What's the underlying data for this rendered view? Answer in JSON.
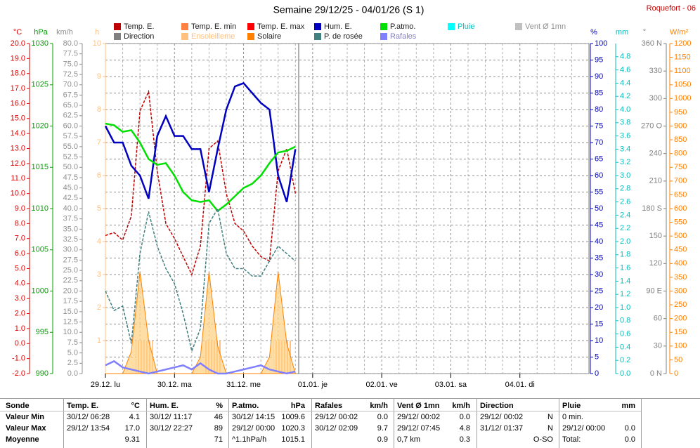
{
  "chart_data": {
    "type": "line",
    "title": "Semaine 29/12/25 - 04/01/26 (S 1)",
    "station": "Roquefort - 06",
    "xlim": [
      0,
      168
    ],
    "xticks": [
      {
        "value": 0,
        "label": "29.12. lu"
      },
      {
        "value": 24,
        "label": "30.12. ma"
      },
      {
        "value": 48,
        "label": "31.12. me"
      },
      {
        "value": 72,
        "label": "01.01. je"
      },
      {
        "value": 96,
        "label": "02.01. ve"
      },
      {
        "value": 120,
        "label": "03.01. sa"
      },
      {
        "value": 144,
        "label": "04.01. di"
      }
    ],
    "xminorticks": [
      6,
      12,
      18,
      30,
      36,
      42,
      54,
      60,
      66,
      78,
      84,
      90,
      102,
      108,
      114,
      126,
      132,
      138,
      150,
      156,
      162
    ],
    "axes": [
      {
        "label": "°C",
        "color": "#e00000",
        "ylim": [
          -2,
          20
        ],
        "yticks": [
          {
            "value": -2,
            "label": "-2.0"
          },
          {
            "value": -1,
            "label": "-1.0"
          },
          {
            "value": 0,
            "label": "0.0"
          },
          {
            "value": 1,
            "label": "1.0"
          },
          {
            "value": 2,
            "label": "2.0"
          },
          {
            "value": 3,
            "label": "3.0"
          },
          {
            "value": 4,
            "label": "4.0"
          },
          {
            "value": 5,
            "label": "5.0"
          },
          {
            "value": 6,
            "label": "6.0"
          },
          {
            "value": 7,
            "label": "7.0"
          },
          {
            "value": 8,
            "label": "8.0"
          },
          {
            "value": 9,
            "label": "9.0"
          },
          {
            "value": 10,
            "label": "10.0"
          },
          {
            "value": 11,
            "label": "11.0"
          },
          {
            "value": 12,
            "label": "12.0"
          },
          {
            "value": 13,
            "label": "13.0"
          },
          {
            "value": 14,
            "label": "14.0"
          },
          {
            "value": 15,
            "label": "15.0"
          },
          {
            "value": 16,
            "label": "16.0"
          },
          {
            "value": 17,
            "label": "17.0"
          },
          {
            "value": 18,
            "label": "18.0"
          },
          {
            "value": 19,
            "label": "19.0"
          },
          {
            "value": 20,
            "label": "20.0"
          }
        ]
      },
      {
        "label": "hPa",
        "color": "#00a000",
        "ylim": [
          990,
          1030
        ],
        "yticks": [
          990,
          995,
          1000,
          1005,
          1010,
          1015,
          1020,
          1025,
          1030
        ]
      },
      {
        "label": "km/h",
        "color": "#909090",
        "ylim": [
          0,
          80
        ],
        "yticks": [
          {
            "value": 0,
            "label": "0.0"
          },
          2.5,
          {
            "value": 5,
            "label": "5.0"
          },
          7.5,
          {
            "value": 10,
            "label": "10.0"
          },
          12.5,
          {
            "value": 15,
            "label": "15.0"
          },
          17.5,
          {
            "value": 20,
            "label": "20.0"
          },
          22.5,
          {
            "value": 25,
            "label": "25.0"
          },
          27.5,
          {
            "value": 30,
            "label": "30.0"
          },
          32.5,
          {
            "value": 35,
            "label": "35.0"
          },
          37.5,
          {
            "value": 40,
            "label": "40.0"
          },
          42.5,
          {
            "value": 45,
            "label": "45.0"
          },
          47.5,
          {
            "value": 50,
            "label": "50.0"
          },
          52.5,
          {
            "value": 55,
            "label": "55.0"
          },
          57.5,
          {
            "value": 60,
            "label": "60.0"
          },
          62.5,
          {
            "value": 65,
            "label": "65.0"
          },
          67.5,
          {
            "value": 70,
            "label": "70.0"
          },
          72.5,
          {
            "value": 75,
            "label": "75.0"
          },
          77.5,
          {
            "value": 80,
            "label": "80.0"
          }
        ]
      },
      {
        "label": "h",
        "color": "#ffc080",
        "ylim": [
          0,
          10
        ],
        "yticks": [
          1,
          2,
          3,
          4,
          5,
          6,
          7,
          8,
          9,
          10
        ]
      },
      {
        "label": "%",
        "color": "#0000c0",
        "ylim": [
          0,
          100
        ],
        "grid": true,
        "yticks": [
          0,
          5,
          10,
          15,
          20,
          25,
          30,
          35,
          40,
          45,
          50,
          55,
          60,
          65,
          70,
          75,
          80,
          85,
          90,
          95,
          100
        ]
      },
      {
        "label": "mm",
        "color": "#00c0c0",
        "ylim": [
          0,
          5
        ],
        "yticks": [
          {
            "value": 0,
            "label": "0.0"
          },
          0.2,
          0.4,
          0.6,
          0.8,
          {
            "value": 1,
            "label": "1.0"
          },
          1.2,
          1.4,
          1.6,
          1.8,
          {
            "value": 2,
            "label": "2.0"
          },
          2.2,
          2.4,
          2.6,
          2.8,
          {
            "value": 3,
            "label": "3.0"
          },
          3.2,
          3.4,
          3.6,
          3.8,
          {
            "value": 4,
            "label": "4.0"
          },
          4.2,
          4.4,
          4.6,
          4.8
        ]
      },
      {
        "label": "°",
        "color": "#808080",
        "ylim": [
          0,
          360
        ],
        "yticks": [
          {
            "value": 0,
            "label": "0 N"
          },
          30,
          60,
          {
            "value": 90,
            "label": "90 E"
          },
          120,
          150,
          {
            "value": 180,
            "label": "180 S"
          },
          210,
          240,
          {
            "value": 270,
            "label": "270 O"
          },
          300,
          330,
          {
            "value": 360,
            "label": "360 N"
          }
        ]
      },
      {
        "label": "W/m²",
        "color": "#ff8000",
        "ylim": [
          0,
          1200
        ],
        "yticks": [
          0,
          50,
          100,
          150,
          200,
          250,
          300,
          350,
          400,
          450,
          500,
          550,
          600,
          650,
          700,
          750,
          800,
          850,
          900,
          950,
          1000,
          1050,
          1100,
          1150,
          1200
        ]
      }
    ],
    "x": [
      0,
      3,
      6,
      9,
      12,
      15,
      18,
      21,
      24,
      27,
      30,
      33,
      36,
      39,
      42,
      45,
      48,
      51,
      54,
      57,
      60,
      63,
      66
    ],
    "series": [
      {
        "name": "Temp. E.",
        "color": "#c00000",
        "kind": "line",
        "dashed": true,
        "axis": "°C",
        "values": [
          7.2,
          7.4,
          6.9,
          8.5,
          15.5,
          16.8,
          11.5,
          8.0,
          7.0,
          5.8,
          4.6,
          6.5,
          13.0,
          13.5,
          10.0,
          8.0,
          7.5,
          6.5,
          5.8,
          5.5,
          11.5,
          13.0,
          10.0
        ]
      },
      {
        "name": "Temp. E. min",
        "color": "#ff8040"
      },
      {
        "name": "Temp. E. max",
        "color": "#ff0000"
      },
      {
        "name": "Hum. E.",
        "color": "#0000c0",
        "kind": "line",
        "axis": "%",
        "values": [
          75,
          70,
          70,
          63,
          60,
          53,
          72,
          78,
          72,
          72,
          68,
          68,
          55,
          68,
          80,
          87,
          88,
          85,
          82,
          80,
          60,
          52,
          68
        ]
      },
      {
        "name": "P.atmo.",
        "color": "#00e000",
        "kind": "line",
        "axis": "hPa",
        "values": [
          1020.3,
          1020.1,
          1019.3,
          1019.5,
          1018,
          1016,
          1015.3,
          1015.5,
          1014,
          1012,
          1011,
          1010.8,
          1011,
          1009.7,
          1010.5,
          1011.5,
          1012.5,
          1013,
          1014,
          1015.5,
          1016.8,
          1017,
          1017.5
        ]
      },
      {
        "name": "Pluie",
        "color": "#00ffff",
        "label_color": "#00c0c0"
      },
      {
        "name": "Vent Ø 1mn",
        "color": "#c0c0c0",
        "label_color": "#909090"
      },
      {
        "name": "Direction",
        "color": "#808080"
      },
      {
        "name": "Ensoleilleme",
        "color": "#ffc080",
        "label_color": "#ffc080",
        "kind": "bar",
        "axis": "h",
        "values": [
          0,
          0,
          0,
          0,
          1,
          1,
          0,
          0,
          0,
          0,
          0,
          0,
          1,
          1,
          0,
          0,
          0,
          0,
          0,
          0,
          1,
          1,
          0
        ]
      },
      {
        "name": "Solaire",
        "color": "#ff8000",
        "kind": "area",
        "axis": "W/m²",
        "values": [
          0,
          0,
          0,
          80,
          370,
          120,
          0,
          0,
          0,
          0,
          0,
          60,
          370,
          100,
          0,
          0,
          0,
          0,
          0,
          60,
          370,
          110,
          0
        ]
      },
      {
        "name": "P. de rosée",
        "color": "#408080",
        "kind": "line",
        "dashed": true,
        "axis": "°C",
        "values": [
          3.5,
          2.2,
          2.5,
          0.0,
          6.0,
          8.8,
          6.5,
          5.0,
          4.0,
          2.0,
          -0.5,
          1.0,
          8.0,
          9.0,
          6.0,
          5.0,
          5.0,
          4.5,
          4.5,
          5.5,
          6.5,
          6.0,
          5.5
        ]
      },
      {
        "name": "Rafales",
        "color": "#8080ff",
        "label_color": "#8080c0",
        "kind": "line",
        "axis": "km/h",
        "values": [
          2,
          3,
          1.5,
          1,
          0.5,
          0,
          0.5,
          1,
          1.5,
          2,
          1,
          2.5,
          1,
          0,
          0,
          0.5,
          1,
          1.5,
          2,
          1,
          0.5,
          0,
          0.5
        ]
      }
    ]
  },
  "table": {
    "row_labels": [
      "Sonde",
      "Valeur Min",
      "Valeur Max",
      "Moyenne"
    ],
    "columns": [
      {
        "name": "Temp. E.",
        "unit": "°C",
        "cells": [
          {
            "left": "30/12/ 06:28",
            "right": "4.1"
          },
          {
            "left": "29/12/ 13:54",
            "right": "17.0"
          },
          {
            "right": "9.31"
          }
        ]
      },
      {
        "name": "Hum. E.",
        "unit": "%",
        "cells": [
          {
            "left": "30/12/ 11:17",
            "right": "46"
          },
          {
            "left": "30/12/ 22:27",
            "right": "89"
          },
          {
            "right": "71"
          }
        ]
      },
      {
        "name": "P.atmo.",
        "unit": "hPa",
        "cells": [
          {
            "left": "30/12/ 14:15",
            "right": "1009.6"
          },
          {
            "left": "29/12/ 00:00",
            "right": "1020.3"
          },
          {
            "left": "^1.1hPa/h",
            "right": "1015.1"
          }
        ]
      },
      {
        "name": "Rafales",
        "unit": "km/h",
        "cells": [
          {
            "left": "29/12/ 00:02",
            "right": "0.0"
          },
          {
            "left": "30/12/ 02:09",
            "right": "9.7"
          },
          {
            "right": "0.9"
          }
        ]
      },
      {
        "name": "Vent Ø 1mn",
        "unit": "km/h",
        "cells": [
          {
            "left": "29/12/ 00:02",
            "right": "0.0"
          },
          {
            "left": "29/12/ 07:45",
            "right": "4.8"
          },
          {
            "left": "0,7 km",
            "right": "0.3"
          }
        ]
      },
      {
        "name": "Direction",
        "cells": [
          {
            "left": "29/12/ 00:02",
            "right": "N"
          },
          {
            "left": "31/12/ 01:37",
            "right": "N"
          },
          {
            "right": "O-SO"
          }
        ]
      },
      {
        "name": "Pluie",
        "unit": "mm",
        "cells": [
          {
            "left": "0 min."
          },
          {
            "left": "29/12/ 00:00",
            "right": "0.0"
          },
          {
            "left": "Total:",
            "right": "0.0"
          }
        ]
      }
    ]
  }
}
